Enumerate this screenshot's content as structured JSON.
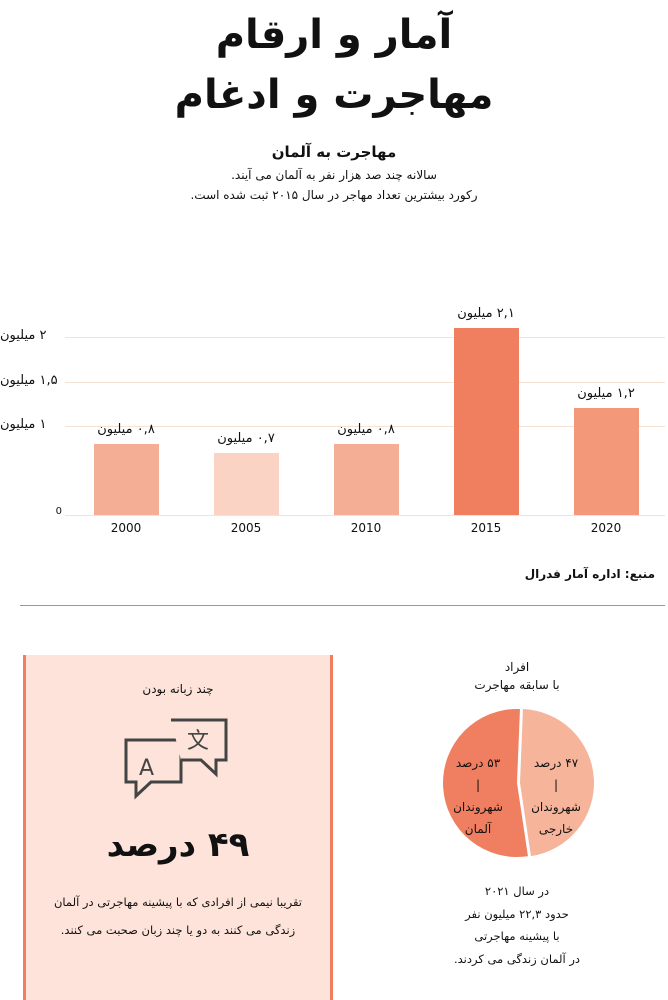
{
  "header": {
    "title_line1": "آمار و ارقام",
    "title_line2": "مهاجرت و ادغام"
  },
  "chart_data": {
    "type": "bar",
    "title": "مهاجرت به آلمان",
    "subtitle_line1": "سالانه چند صد هزار نفر به آلمان می آیند.",
    "subtitle_line2": "رکورد بیشترین تعداد مهاجر در سال ۲۰۱۵ ثبت شده است.",
    "categories": [
      "2000",
      "2005",
      "2010",
      "2015",
      "2020"
    ],
    "values": [
      0.8,
      0.7,
      0.8,
      2.1,
      1.2
    ],
    "data_labels": [
      "۰,۸ میلیون",
      "۰,۷ میلیون",
      "۰,۸ میلیون",
      "۲,۱ میلیون",
      "۱,۲ میلیون"
    ],
    "colors": [
      "#f5ae96",
      "#fbd3c5",
      "#f5ae96",
      "#f07f60",
      "#f4987a"
    ],
    "yticks": [
      {
        "value": 0,
        "label": "0"
      },
      {
        "value": 1,
        "label": "۱ میلیون"
      },
      {
        "value": 1.5,
        "label": "۱,۵ میلیون"
      },
      {
        "value": 2,
        "label": "۲ میلیون"
      }
    ],
    "ylim": [
      0,
      2.3
    ],
    "grid": true,
    "unit": "million"
  },
  "source": "منبع: اداره آمار فدرال",
  "multilingual": {
    "heading": "چند زبانه بودن",
    "icon": "translate-icon",
    "value": "۴۹ درصد",
    "text_line1": "تقریبا نیمی از افرادی که با پیشینه مهاجرتی در آلمان",
    "text_line2": "زندگی می کنند به دو یا چند زبان صحبت می کنند."
  },
  "pie": {
    "type": "pie",
    "title_line1": "افراد",
    "title_line2": "با سابقه مهاجرت",
    "slices": [
      {
        "label_pct": "۵۳ درصد",
        "label_l1": "شهروندان",
        "label_l2": "آلمان",
        "value": 53,
        "color": "#ef7f60"
      },
      {
        "label_pct": "۴۷ درصد",
        "label_l1": "شهروندان",
        "label_l2": "خارجی",
        "value": 47,
        "color": "#f6b49b"
      }
    ],
    "sep": "|",
    "footer": [
      "در سال ۲۰۲۱",
      "حدود ۲۲,۳ میلیون نفر",
      "با پیشینه مهاجرتی",
      "در آلمان زندگی می کردند."
    ]
  }
}
